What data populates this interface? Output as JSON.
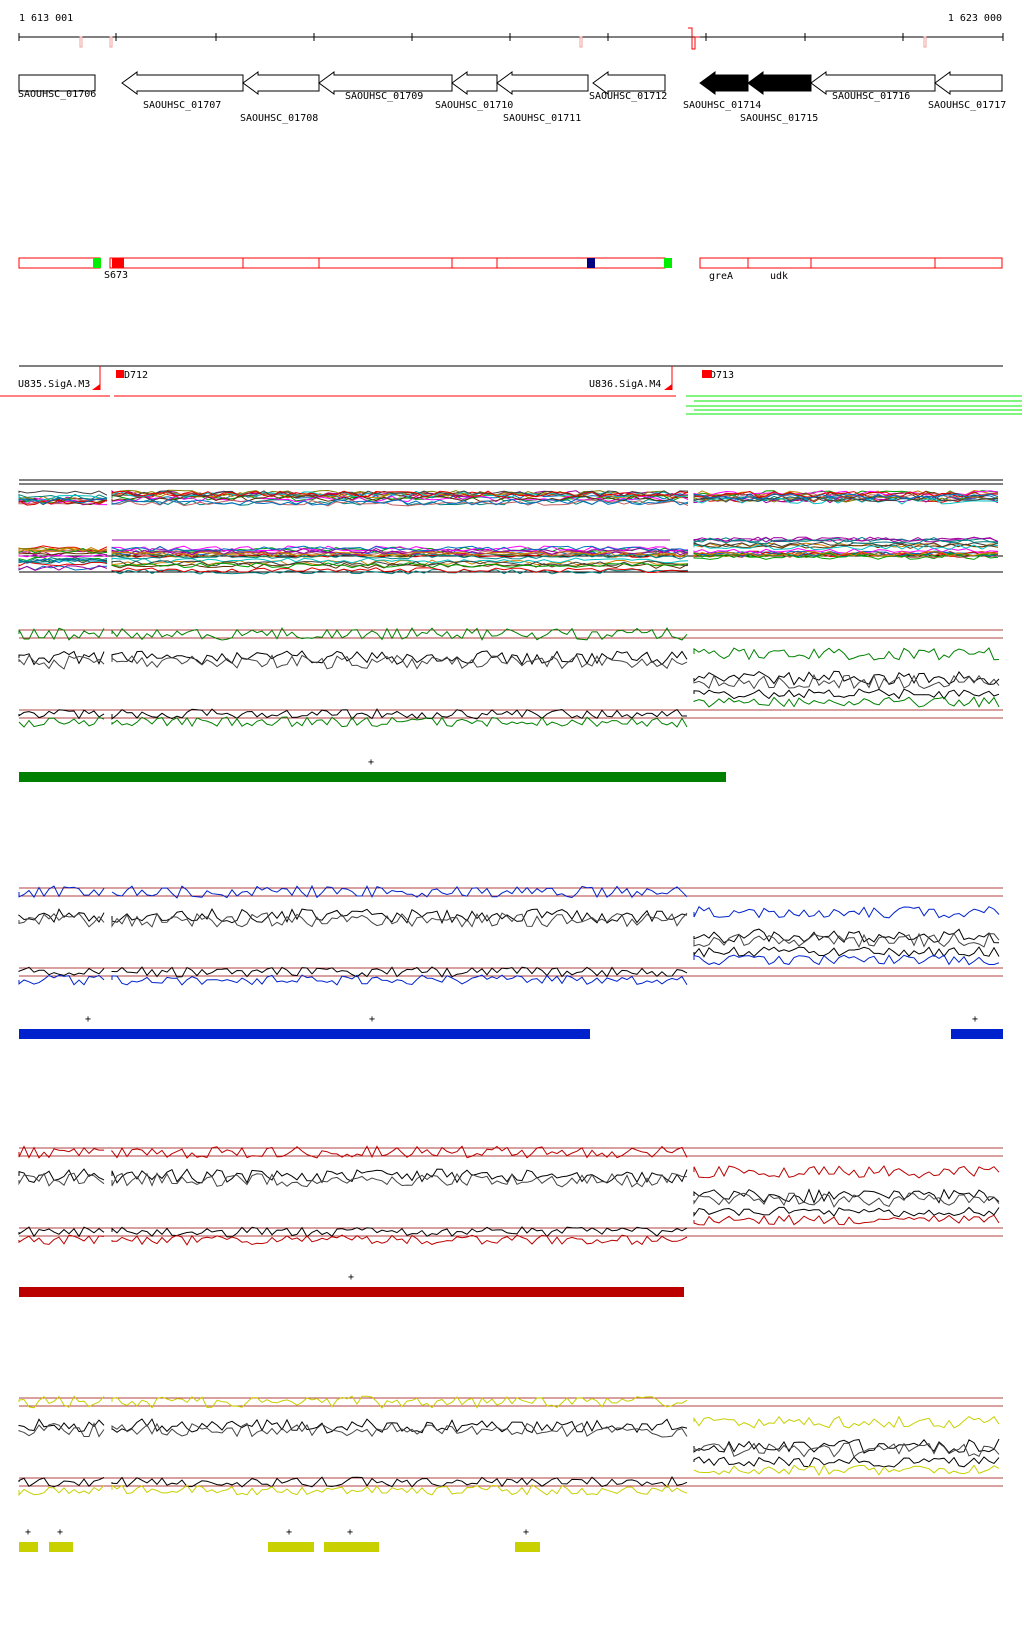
{
  "coordinates": {
    "start": "1 613 001",
    "end": "1 623 000"
  },
  "colors": {
    "red": "#ff0000",
    "darkred": "#990000",
    "green_bright": "#00ee00",
    "navy": "#000080",
    "track_green": "#008000",
    "track_blue": "#0022cc",
    "track_red": "#bb0000",
    "track_yellow": "#c8d000",
    "threshold": "#b04040",
    "arrow_fill": "#ffffff",
    "arrow_fill_highlight": "#000000"
  },
  "genes": [
    {
      "name": "SAOUHSC_01706",
      "strand": "+",
      "highlight": false
    },
    {
      "name": "SAOUHSC_01707",
      "strand": "-",
      "highlight": false
    },
    {
      "name": "SAOUHSC_01708",
      "strand": "-",
      "highlight": false
    },
    {
      "name": "SAOUHSC_01709",
      "strand": "-",
      "highlight": false
    },
    {
      "name": "SAOUHSC_01710",
      "strand": "-",
      "highlight": false
    },
    {
      "name": "SAOUHSC_01711",
      "strand": "-",
      "highlight": false
    },
    {
      "name": "SAOUHSC_01712",
      "strand": "-",
      "highlight": false
    },
    {
      "name": "SAOUHSC_01714",
      "strand": "-",
      "highlight": true
    },
    {
      "name": "SAOUHSC_01715",
      "strand": "-",
      "highlight": true
    },
    {
      "name": "SAOUHSC_01716",
      "strand": "-",
      "highlight": false
    },
    {
      "name": "SAOUHSC_01717",
      "strand": "-",
      "highlight": false
    }
  ],
  "annotation_labels": [
    "S673",
    "greA",
    "udk"
  ],
  "features": [
    "U835.SigA.M3",
    "D712",
    "U836.SigA.M4",
    "D713"
  ],
  "track_marker": "+"
}
